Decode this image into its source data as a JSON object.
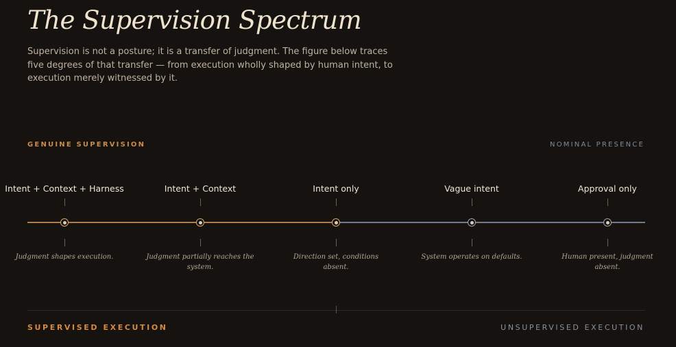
{
  "header": {
    "title": "The Supervision Spectrum",
    "intro": "Supervision is not a posture; it is a transfer of judgment. The figure below traces five degrees of that transfer — from execution wholly shaped by human intent, to execution merely witnessed by it."
  },
  "spectrum": {
    "left_end": "GENUINE SUPERVISION",
    "right_end": "NOMINAL PRESENCE",
    "colors": {
      "warm": "#c98c4a",
      "cool": "#7d8b9c"
    },
    "stages": [
      {
        "label": "Intent + Context + Harness",
        "description": "Judgment shapes execution."
      },
      {
        "label": "Intent + Context",
        "description": "Judgment partially reaches the system."
      },
      {
        "label": "Intent only",
        "description": "Direction set, conditions absent."
      },
      {
        "label": "Vague intent",
        "description": "System operates on defaults."
      },
      {
        "label": "Approval only",
        "description": "Human present, judgment absent."
      }
    ]
  },
  "footer": {
    "left": "SUPERVISED EXECUTION",
    "right": "UNSUPERVISED EXECUTION"
  }
}
